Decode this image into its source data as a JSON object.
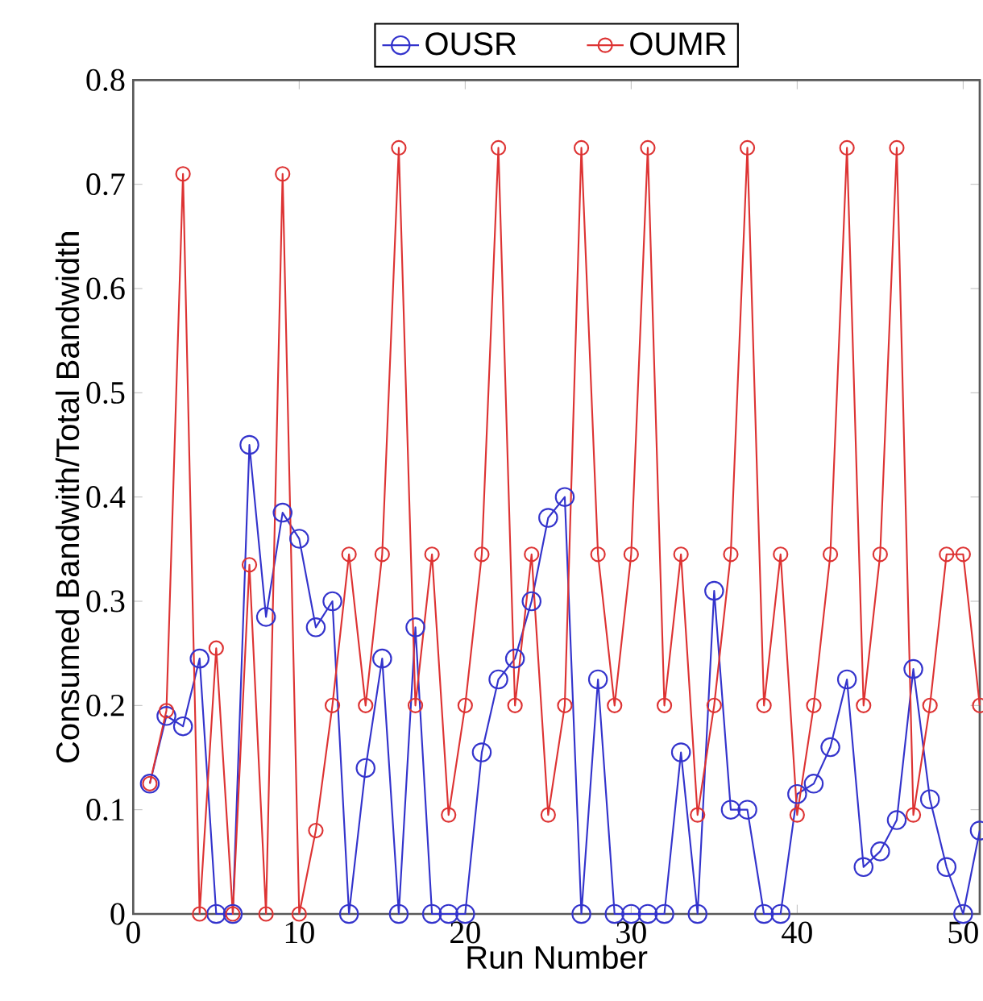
{
  "chart_data": {
    "type": "line",
    "xlabel": "Run Number",
    "ylabel": "Consumed Bandwith/Total Bandwidth",
    "x": [
      1,
      2,
      3,
      4,
      5,
      6,
      7,
      8,
      9,
      10,
      11,
      12,
      13,
      14,
      15,
      16,
      17,
      18,
      19,
      20,
      21,
      22,
      23,
      24,
      25,
      26,
      27,
      28,
      29,
      30,
      31,
      32,
      33,
      34,
      35,
      36,
      37,
      38,
      39,
      40,
      41,
      42,
      43,
      44,
      45,
      46,
      47,
      48,
      49,
      50,
      51
    ],
    "series": [
      {
        "name": "OUSR",
        "color": "#3333cc",
        "values": [
          0.125,
          0.19,
          0.18,
          0.245,
          0,
          0,
          0.45,
          0.285,
          0.385,
          0.36,
          0.275,
          0.3,
          0,
          0.14,
          0.245,
          0,
          0.275,
          0,
          0,
          0,
          0.155,
          0.225,
          0.245,
          0.3,
          0.38,
          0.4,
          0,
          0.225,
          0,
          0,
          0,
          0,
          0.155,
          0,
          0.31,
          0.1,
          0.1,
          0,
          0,
          0.115,
          0.125,
          0.16,
          0.225,
          0.045,
          0.06,
          0.09,
          0.235,
          0.11,
          0.045,
          0,
          0.08
        ]
      },
      {
        "name": "OUMR",
        "color": "#dd3333",
        "values": [
          0.125,
          0.195,
          0.71,
          0,
          0.255,
          0,
          0.335,
          0,
          0.71,
          0,
          0.08,
          0.2,
          0.345,
          0.2,
          0.345,
          0.735,
          0.2,
          0.345,
          0.095,
          0.2,
          0.345,
          0.735,
          0.2,
          0.345,
          0.095,
          0.2,
          0.735,
          0.345,
          0.2,
          0.345,
          0.735,
          0.2,
          0.345,
          0.095,
          0.2,
          0.345,
          0.735,
          0.2,
          0.345,
          0.095,
          0.2,
          0.345,
          0.735,
          0.2,
          0.345,
          0.735,
          0.095,
          0.2,
          0.345,
          0.345,
          0.2
        ]
      }
    ],
    "xlim": [
      0,
      51
    ],
    "ylim": [
      0,
      0.8
    ],
    "xticks": [
      0,
      10,
      20,
      30,
      40,
      50
    ],
    "yticks": [
      {
        "value": 0,
        "label": "0"
      },
      {
        "value": 0.1,
        "label": "0.1"
      },
      {
        "value": 0.2,
        "label": "0.2"
      },
      {
        "value": 0.3,
        "label": "0.3"
      },
      {
        "value": 0.4,
        "label": "0.4"
      },
      {
        "value": 0.5,
        "label": "0.5"
      },
      {
        "value": 0.6,
        "label": "0.6"
      },
      {
        "value": 0.7,
        "label": "0.7"
      },
      {
        "value": 0.8,
        "label": "0.8"
      }
    ],
    "grid": false,
    "legend": "top",
    "marker": "circle",
    "line_style": "solid"
  }
}
